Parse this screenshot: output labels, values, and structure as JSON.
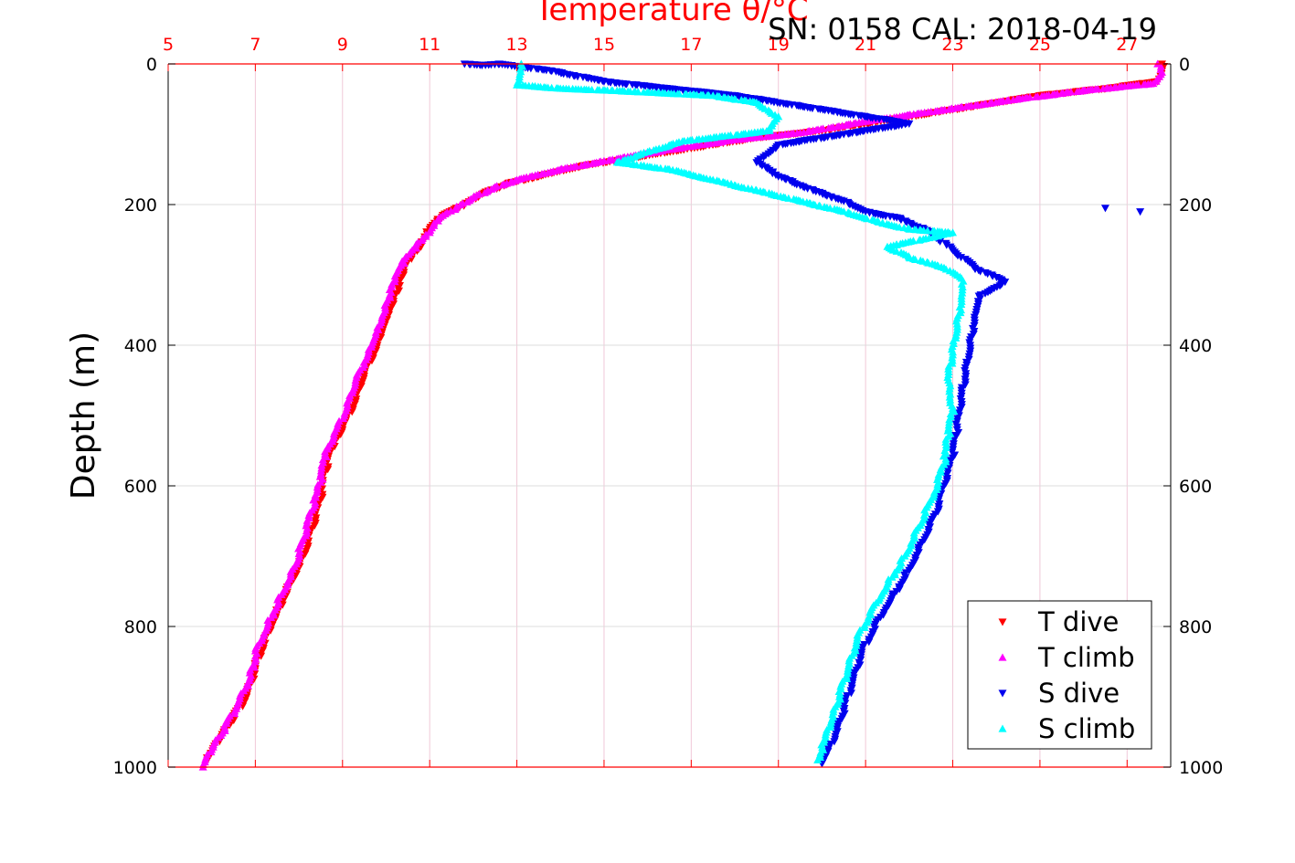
{
  "chart_data": {
    "type": "scatter",
    "title": "Temperature θ/°C",
    "subtitle": "SN: 0158  CAL: 2018-04-19",
    "xlabel": "Temperature θ/°C",
    "ylabel": "Depth (m)",
    "xlim": [
      5,
      28
    ],
    "ylim": [
      1000,
      0
    ],
    "x_ticks": [
      5,
      7,
      9,
      11,
      13,
      15,
      17,
      19,
      21,
      23,
      25,
      27
    ],
    "y_ticks": [
      0,
      200,
      400,
      600,
      800,
      1000
    ],
    "grid": true,
    "legend_position": "bottom-right",
    "colors": {
      "t_axis": "#ff0000",
      "grid_x": "#f0c8d8",
      "grid_y": "#dcdcdc",
      "t_dive": "#ff0000",
      "t_climb": "#ff00ff",
      "s_dive": "#0000ee",
      "s_climb": "#00ffff"
    },
    "series": [
      {
        "name": "T dive",
        "marker": "triangle-down",
        "color": "#ff0000",
        "points": [
          [
            27.8,
            0
          ],
          [
            27.8,
            10
          ],
          [
            27.7,
            25
          ],
          [
            26.5,
            35
          ],
          [
            25.0,
            45
          ],
          [
            23.0,
            65
          ],
          [
            21.5,
            80
          ],
          [
            20.0,
            95
          ],
          [
            18.5,
            105
          ],
          [
            17.0,
            120
          ],
          [
            15.5,
            135
          ],
          [
            14.5,
            145
          ],
          [
            13.5,
            160
          ],
          [
            12.8,
            170
          ],
          [
            12.2,
            185
          ],
          [
            11.8,
            200
          ],
          [
            11.3,
            215
          ],
          [
            11.0,
            235
          ],
          [
            10.8,
            260
          ],
          [
            10.5,
            280
          ],
          [
            10.4,
            300
          ],
          [
            10.2,
            330
          ],
          [
            10.0,
            360
          ],
          [
            9.8,
            400
          ],
          [
            9.5,
            440
          ],
          [
            9.3,
            480
          ],
          [
            9.0,
            520
          ],
          [
            8.8,
            540
          ],
          [
            8.6,
            580
          ],
          [
            8.5,
            620
          ],
          [
            8.3,
            660
          ],
          [
            8.1,
            700
          ],
          [
            7.8,
            740
          ],
          [
            7.5,
            780
          ],
          [
            7.2,
            820
          ],
          [
            7.0,
            860
          ],
          [
            6.8,
            900
          ],
          [
            6.5,
            930
          ],
          [
            6.2,
            960
          ],
          [
            5.9,
            990
          ]
        ]
      },
      {
        "name": "T climb",
        "marker": "triangle-up",
        "color": "#ff00ff",
        "points": [
          [
            27.7,
            0
          ],
          [
            27.8,
            12
          ],
          [
            27.6,
            28
          ],
          [
            26.0,
            38
          ],
          [
            24.5,
            50
          ],
          [
            22.5,
            68
          ],
          [
            21.0,
            82
          ],
          [
            19.5,
            98
          ],
          [
            18.0,
            108
          ],
          [
            16.5,
            122
          ],
          [
            15.0,
            138
          ],
          [
            14.0,
            150
          ],
          [
            13.0,
            165
          ],
          [
            12.5,
            175
          ],
          [
            12.0,
            190
          ],
          [
            11.6,
            205
          ],
          [
            11.2,
            220
          ],
          [
            11.0,
            240
          ],
          [
            10.6,
            265
          ],
          [
            10.3,
            290
          ],
          [
            10.2,
            310
          ],
          [
            10.0,
            340
          ],
          [
            9.8,
            375
          ],
          [
            9.6,
            410
          ],
          [
            9.3,
            450
          ],
          [
            9.1,
            490
          ],
          [
            8.8,
            530
          ],
          [
            8.6,
            555
          ],
          [
            8.5,
            595
          ],
          [
            8.3,
            635
          ],
          [
            8.1,
            675
          ],
          [
            7.9,
            715
          ],
          [
            7.6,
            755
          ],
          [
            7.3,
            795
          ],
          [
            7.0,
            835
          ],
          [
            6.9,
            870
          ],
          [
            6.6,
            910
          ],
          [
            6.3,
            945
          ],
          [
            6.0,
            975
          ],
          [
            5.8,
            1000
          ]
        ]
      },
      {
        "name": "S dive",
        "marker": "triangle-down",
        "color": "#0000ee",
        "points": [
          [
            11.8,
            0
          ],
          [
            12.2,
            2
          ],
          [
            12.6,
            0
          ],
          [
            13.8,
            10
          ],
          [
            15.0,
            25
          ],
          [
            16.5,
            35
          ],
          [
            18.0,
            45
          ],
          [
            19.5,
            60
          ],
          [
            21.0,
            75
          ],
          [
            22.0,
            85
          ],
          [
            20.5,
            100
          ],
          [
            19.0,
            115
          ],
          [
            18.5,
            140
          ],
          [
            19.0,
            160
          ],
          [
            19.8,
            180
          ],
          [
            20.5,
            195
          ],
          [
            21.0,
            210
          ],
          [
            21.8,
            220
          ],
          [
            22.5,
            240
          ],
          [
            23.0,
            265
          ],
          [
            23.5,
            290
          ],
          [
            24.2,
            310
          ],
          [
            23.6,
            330
          ],
          [
            23.5,
            360
          ],
          [
            23.4,
            400
          ],
          [
            23.3,
            440
          ],
          [
            23.2,
            480
          ],
          [
            23.1,
            520
          ],
          [
            23.0,
            560
          ],
          [
            22.8,
            600
          ],
          [
            22.6,
            640
          ],
          [
            22.3,
            680
          ],
          [
            22.0,
            720
          ],
          [
            21.6,
            760
          ],
          [
            21.2,
            800
          ],
          [
            20.9,
            840
          ],
          [
            20.7,
            880
          ],
          [
            20.5,
            920
          ],
          [
            20.3,
            960
          ],
          [
            20.0,
            995
          ],
          [
            26.5,
            205
          ],
          [
            27.3,
            210
          ]
        ]
      },
      {
        "name": "S climb",
        "marker": "triangle-up",
        "color": "#00ffff",
        "points": [
          [
            13.1,
            0
          ],
          [
            13.0,
            30
          ],
          [
            14.0,
            35
          ],
          [
            15.2,
            38
          ],
          [
            17.5,
            45
          ],
          [
            18.5,
            55
          ],
          [
            19.0,
            75
          ],
          [
            18.8,
            95
          ],
          [
            16.8,
            110
          ],
          [
            16.0,
            125
          ],
          [
            15.3,
            140
          ],
          [
            16.5,
            150
          ],
          [
            17.5,
            165
          ],
          [
            18.5,
            180
          ],
          [
            19.5,
            195
          ],
          [
            20.5,
            210
          ],
          [
            21.3,
            225
          ],
          [
            22.0,
            235
          ],
          [
            23.0,
            240
          ],
          [
            21.5,
            260
          ],
          [
            22.0,
            275
          ],
          [
            22.8,
            290
          ],
          [
            23.2,
            305
          ],
          [
            23.2,
            330
          ],
          [
            23.1,
            370
          ],
          [
            23.0,
            410
          ],
          [
            22.9,
            450
          ],
          [
            23.0,
            490
          ],
          [
            22.9,
            530
          ],
          [
            22.8,
            570
          ],
          [
            22.5,
            620
          ],
          [
            22.2,
            660
          ],
          [
            21.9,
            700
          ],
          [
            21.5,
            740
          ],
          [
            21.1,
            780
          ],
          [
            20.8,
            820
          ],
          [
            20.6,
            860
          ],
          [
            20.4,
            900
          ],
          [
            20.2,
            940
          ],
          [
            19.9,
            990
          ]
        ]
      }
    ]
  }
}
